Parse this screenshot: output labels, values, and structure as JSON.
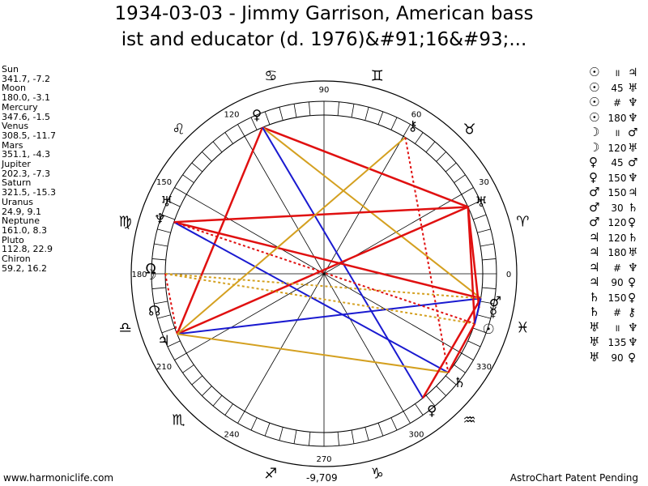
{
  "title_line1": "1934-03-03 - Jimmy Garrison, American bass",
  "title_line2": "ist and educator (d. 1976)&#91;16&#93;...",
  "planets": [
    {
      "name": "Sun",
      "value": "341.7, -7.2"
    },
    {
      "name": "Moon",
      "value": "180.0, -3.1"
    },
    {
      "name": "Mercury",
      "value": "347.6, -1.5"
    },
    {
      "name": "Venus",
      "value": "308.5, -11.7"
    },
    {
      "name": "Mars",
      "value": "351.1, -4.3"
    },
    {
      "name": "Jupiter",
      "value": "202.3, -7.3"
    },
    {
      "name": "Saturn",
      "value": "321.5, -15.3"
    },
    {
      "name": "Uranus",
      "value": "24.9, 9.1"
    },
    {
      "name": "Neptune",
      "value": "161.0, 8.3"
    },
    {
      "name": "Pluto",
      "value": "112.8, 22.9"
    },
    {
      "name": "Chiron",
      "value": "59.2, 16.2"
    }
  ],
  "aspects": [
    {
      "p1": "☉",
      "asp": "॥",
      "p2": "♃"
    },
    {
      "p1": "☉",
      "asp": "45",
      "p2": "♅"
    },
    {
      "p1": "☉",
      "asp": "#",
      "p2": "♆"
    },
    {
      "p1": "☉",
      "asp": "180",
      "p2": "♆"
    },
    {
      "p1": "☽",
      "asp": "॥",
      "p2": "♂"
    },
    {
      "p1": "☽",
      "asp": "120",
      "p2": "♅"
    },
    {
      "p1": "♀",
      "asp": "45",
      "p2": "♂"
    },
    {
      "p1": "♀",
      "asp": "150",
      "p2": "♆"
    },
    {
      "p1": "♂",
      "asp": "150",
      "p2": "♃"
    },
    {
      "p1": "♂",
      "asp": "30",
      "p2": "♄"
    },
    {
      "p1": "♂",
      "asp": "120",
      "p2": "♀"
    },
    {
      "p1": "♃",
      "asp": "120",
      "p2": "♄"
    },
    {
      "p1": "♃",
      "asp": "180",
      "p2": "♅"
    },
    {
      "p1": "♃",
      "asp": "#",
      "p2": "♆"
    },
    {
      "p1": "♃",
      "asp": "90",
      "p2": "♀"
    },
    {
      "p1": "♄",
      "asp": "150",
      "p2": "♀"
    },
    {
      "p1": "♄",
      "asp": "#",
      "p2": "⚷"
    },
    {
      "p1": "♅",
      "asp": "॥",
      "p2": "♆"
    },
    {
      "p1": "♅",
      "asp": "135",
      "p2": "♆"
    },
    {
      "p1": "♅",
      "asp": "90",
      "p2": "♀"
    }
  ],
  "wheel": {
    "degree_labels": [
      "0",
      "30",
      "60",
      "90",
      "120",
      "150",
      "180",
      "210",
      "240",
      "270",
      "300",
      "330"
    ],
    "sign_glyphs": [
      "♈",
      "♉",
      "♊",
      "♋",
      "♌",
      "♍",
      "♎",
      "♏",
      "♐",
      "♑",
      "♒",
      "♓"
    ],
    "planet_glyphs": [
      {
        "glyph": "☉",
        "lon": 341.7
      },
      {
        "glyph": "☽",
        "lon": 180.0
      },
      {
        "glyph": "☿",
        "lon": 347.6
      },
      {
        "glyph": "♀",
        "lon": 308.5
      },
      {
        "glyph": "♂",
        "lon": 351.1
      },
      {
        "glyph": "♃",
        "lon": 202.3
      },
      {
        "glyph": "♄",
        "lon": 321.5
      },
      {
        "glyph": "♅",
        "lon": 24.9
      },
      {
        "glyph": "♆",
        "lon": 161.0
      },
      {
        "glyph": "♀",
        "lon": 112.8
      },
      {
        "glyph": "⚷",
        "lon": 59.2
      },
      {
        "glyph": "☊",
        "lon": 192.0
      },
      {
        "glyph": "♅",
        "lon": 155.0
      },
      {
        "glyph": "Ω",
        "lon": 178.0
      }
    ],
    "colors": {
      "red": "#e01010",
      "blue": "#1a1ad0",
      "gold": "#d4a020",
      "ring": "#000000"
    }
  },
  "footer": {
    "left": "www.harmoniclife.com",
    "center": "-9,709",
    "right": "AstroChart Patent Pending"
  }
}
